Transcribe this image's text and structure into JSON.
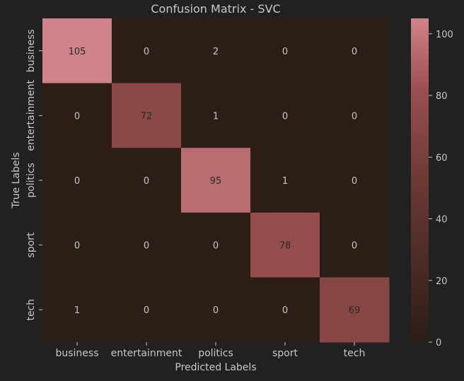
{
  "chart_data": {
    "type": "heatmap",
    "title": "Confusion Matrix - SVC",
    "xlabel": "Predicted Labels",
    "ylabel": "True Labels",
    "x_categories": [
      "business",
      "entertainment",
      "politics",
      "sport",
      "tech"
    ],
    "y_categories": [
      "business",
      "entertainment",
      "politics",
      "sport",
      "tech"
    ],
    "values": [
      [
        105,
        0,
        2,
        0,
        0
      ],
      [
        0,
        72,
        1,
        0,
        0
      ],
      [
        0,
        0,
        95,
        1,
        0
      ],
      [
        0,
        0,
        0,
        78,
        0
      ],
      [
        1,
        0,
        0,
        0,
        69
      ]
    ],
    "colorbar": {
      "min": 0,
      "max": 105,
      "ticks": [
        0,
        20,
        40,
        60,
        80,
        100
      ]
    },
    "colors": {
      "background": "#212121",
      "low": "#2c1d17",
      "mid": "#9a4f50",
      "high": "#cf8489",
      "text": "#c8c8c8",
      "cell_text": "#2a2a2a"
    }
  }
}
